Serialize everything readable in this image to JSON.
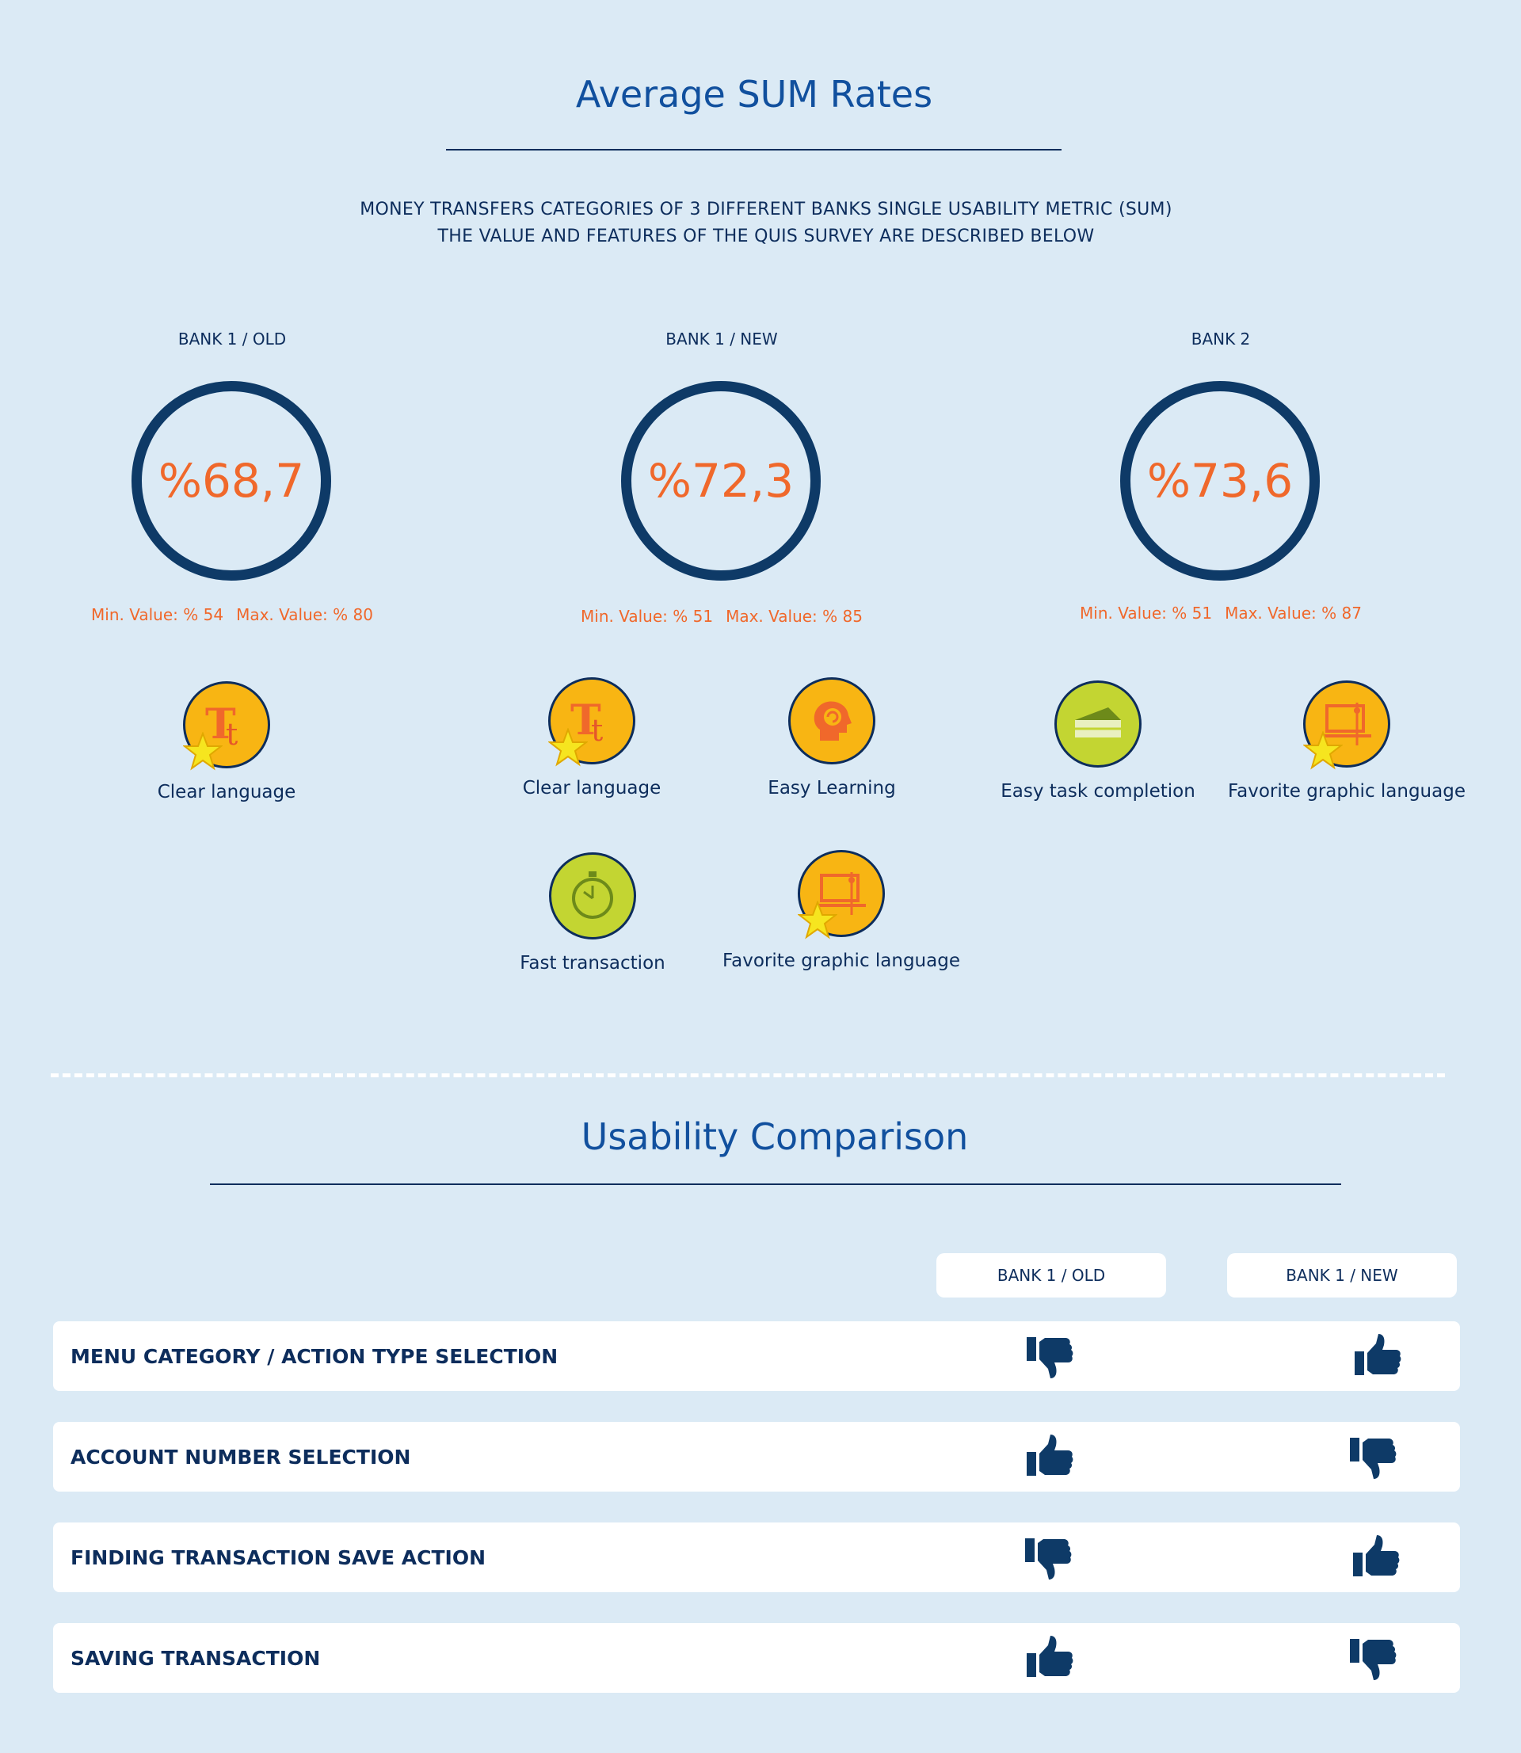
{
  "title": "Average SUM Rates",
  "subtitle_lines": [
    "MONEY TRANSFERS CATEGORIES OF 3 DIFFERENT BANKS SINGLE USABILITY METRIC (SUM)",
    "THE VALUE AND FEATURES OF THE QUIS SURVEY ARE DESCRIBED BELOW"
  ],
  "banks": [
    {
      "label": "BANK 1  / OLD",
      "score": "%68,7",
      "min": "Min. Value: % 54",
      "max": "Max. Value: % 80",
      "ring_color": "#0e3a67",
      "score_color": "#f0682b"
    },
    {
      "label": "BANK 1  /  NEW",
      "score": "%72,3",
      "min": "Min. Value: % 51",
      "max": "Max. Value: % 85"
    },
    {
      "label": "BANK 2",
      "score": "%73,6",
      "min": "Min. Value: % 51",
      "max": "Max. Value: % 87"
    }
  ],
  "features": {
    "bank1_old": [
      {
        "label": "Clear language",
        "icon": "typography-icon",
        "starred": true
      }
    ],
    "bank1_new": [
      {
        "label": "Clear language",
        "icon": "typography-icon",
        "starred": true
      },
      {
        "label": "Easy Learning",
        "icon": "brain-icon",
        "starred": false
      },
      {
        "label": "Fast transaction",
        "icon": "stopwatch-icon",
        "starred": false
      },
      {
        "label": "Favorite graphic language",
        "icon": "design-screen-icon",
        "starred": true
      }
    ],
    "bank2": [
      {
        "label": "Easy task completion",
        "icon": "cake-slice-icon",
        "starred": false
      },
      {
        "label": "Favorite graphic language",
        "icon": "design-screen-icon",
        "starred": true
      }
    ]
  },
  "comparison": {
    "title": "Usability Comparison",
    "columns": [
      "BANK 1  / OLD",
      "BANK 1  / NEW"
    ],
    "rows": [
      {
        "label": "MENU CATEGORY / ACTION TYPE SELECTION",
        "old": "thumbs-down",
        "new": "thumbs-up"
      },
      {
        "label": "ACCOUNT NUMBER SELECTION",
        "old": "thumbs-up",
        "new": "thumbs-down"
      },
      {
        "label": "FINDING TRANSACTION SAVE ACTION",
        "old": "thumbs-down",
        "new": "thumbs-up"
      },
      {
        "label": "SAVING TRANSACTION",
        "old": "thumbs-up",
        "new": "thumbs-down"
      }
    ]
  },
  "colors": {
    "title_blue": "#11509e",
    "navy": "#0d2d5c",
    "orange": "#f0682b",
    "icon_orange": "#f8b513",
    "icon_green": "#c3d532",
    "background": "#dbeaf5"
  }
}
